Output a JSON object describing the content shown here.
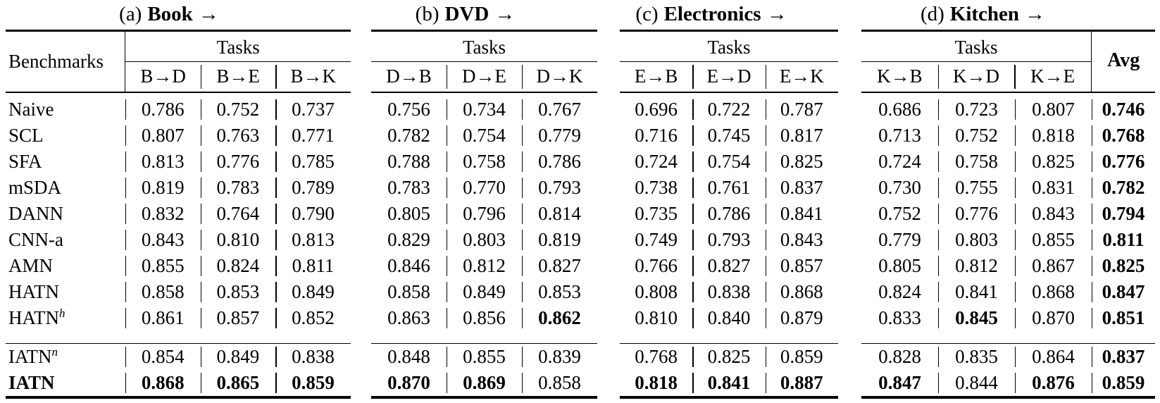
{
  "header": {
    "benchmarks_label": "Benchmarks",
    "tasks_label": "Tasks",
    "avg_label": "Avg"
  },
  "sections": [
    {
      "caption": "(a)",
      "title": "Book",
      "arrow": "→",
      "columns": [
        "B→D",
        "B→E",
        "B→K"
      ]
    },
    {
      "caption": "(b)",
      "title": "DVD",
      "arrow": "→",
      "columns": [
        "D→B",
        "D→E",
        "D→K"
      ]
    },
    {
      "caption": "(c)",
      "title": "Electronics",
      "arrow": "→",
      "columns": [
        "E→B",
        "E→D",
        "E→K"
      ]
    },
    {
      "caption": "(d)",
      "title": "Kitchen",
      "arrow": "→",
      "columns": [
        "K→B",
        "K→D",
        "K→E"
      ]
    }
  ],
  "colors": {
    "text": "#000000",
    "background": "#ffffff",
    "rule": "#000000"
  },
  "table": {
    "rows": [
      {
        "group": 1,
        "name": "Naive",
        "sup": "",
        "name_bold": false,
        "book": [
          "0.786",
          "0.752",
          "0.737"
        ],
        "dvd": [
          "0.756",
          "0.734",
          "0.767"
        ],
        "electronics": [
          "0.696",
          "0.722",
          "0.787"
        ],
        "kitchen": [
          "0.686",
          "0.723",
          "0.807"
        ],
        "avg": "0.746",
        "bold_book": [
          false,
          false,
          false
        ],
        "bold_dvd": [
          false,
          false,
          false
        ],
        "bold_electronics": [
          false,
          false,
          false
        ],
        "bold_kitchen": [
          false,
          false,
          false
        ]
      },
      {
        "group": 1,
        "name": "SCL",
        "sup": "",
        "name_bold": false,
        "book": [
          "0.807",
          "0.763",
          "0.771"
        ],
        "dvd": [
          "0.782",
          "0.754",
          "0.779"
        ],
        "electronics": [
          "0.716",
          "0.745",
          "0.817"
        ],
        "kitchen": [
          "0.713",
          "0.752",
          "0.818"
        ],
        "avg": "0.768",
        "bold_book": [
          false,
          false,
          false
        ],
        "bold_dvd": [
          false,
          false,
          false
        ],
        "bold_electronics": [
          false,
          false,
          false
        ],
        "bold_kitchen": [
          false,
          false,
          false
        ]
      },
      {
        "group": 1,
        "name": "SFA",
        "sup": "",
        "name_bold": false,
        "book": [
          "0.813",
          "0.776",
          "0.785"
        ],
        "dvd": [
          "0.788",
          "0.758",
          "0.786"
        ],
        "electronics": [
          "0.724",
          "0.754",
          "0.825"
        ],
        "kitchen": [
          "0.724",
          "0.758",
          "0.825"
        ],
        "avg": "0.776",
        "bold_book": [
          false,
          false,
          false
        ],
        "bold_dvd": [
          false,
          false,
          false
        ],
        "bold_electronics": [
          false,
          false,
          false
        ],
        "bold_kitchen": [
          false,
          false,
          false
        ]
      },
      {
        "group": 1,
        "name": "mSDA",
        "sup": "",
        "name_bold": false,
        "book": [
          "0.819",
          "0.783",
          "0.789"
        ],
        "dvd": [
          "0.783",
          "0.770",
          "0.793"
        ],
        "electronics": [
          "0.738",
          "0.761",
          "0.837"
        ],
        "kitchen": [
          "0.730",
          "0.755",
          "0.831"
        ],
        "avg": "0.782",
        "bold_book": [
          false,
          false,
          false
        ],
        "bold_dvd": [
          false,
          false,
          false
        ],
        "bold_electronics": [
          false,
          false,
          false
        ],
        "bold_kitchen": [
          false,
          false,
          false
        ]
      },
      {
        "group": 1,
        "name": "DANN",
        "sup": "",
        "name_bold": false,
        "book": [
          "0.832",
          "0.764",
          "0.790"
        ],
        "dvd": [
          "0.805",
          "0.796",
          "0.814"
        ],
        "electronics": [
          "0.735",
          "0.786",
          "0.841"
        ],
        "kitchen": [
          "0.752",
          "0.776",
          "0.843"
        ],
        "avg": "0.794",
        "bold_book": [
          false,
          false,
          false
        ],
        "bold_dvd": [
          false,
          false,
          false
        ],
        "bold_electronics": [
          false,
          false,
          false
        ],
        "bold_kitchen": [
          false,
          false,
          false
        ]
      },
      {
        "group": 1,
        "name": "CNN-a",
        "sup": "",
        "name_bold": false,
        "book": [
          "0.843",
          "0.810",
          "0.813"
        ],
        "dvd": [
          "0.829",
          "0.803",
          "0.819"
        ],
        "electronics": [
          "0.749",
          "0.793",
          "0.843"
        ],
        "kitchen": [
          "0.779",
          "0.803",
          "0.855"
        ],
        "avg": "0.811",
        "bold_book": [
          false,
          false,
          false
        ],
        "bold_dvd": [
          false,
          false,
          false
        ],
        "bold_electronics": [
          false,
          false,
          false
        ],
        "bold_kitchen": [
          false,
          false,
          false
        ]
      },
      {
        "group": 1,
        "name": "AMN",
        "sup": "",
        "name_bold": false,
        "book": [
          "0.855",
          "0.824",
          "0.811"
        ],
        "dvd": [
          "0.846",
          "0.812",
          "0.827"
        ],
        "electronics": [
          "0.766",
          "0.827",
          "0.857"
        ],
        "kitchen": [
          "0.805",
          "0.812",
          "0.867"
        ],
        "avg": "0.825",
        "bold_book": [
          false,
          false,
          false
        ],
        "bold_dvd": [
          false,
          false,
          false
        ],
        "bold_electronics": [
          false,
          false,
          false
        ],
        "bold_kitchen": [
          false,
          false,
          false
        ]
      },
      {
        "group": 1,
        "name": "HATN",
        "sup": "",
        "name_bold": false,
        "book": [
          "0.858",
          "0.853",
          "0.849"
        ],
        "dvd": [
          "0.858",
          "0.849",
          "0.853"
        ],
        "electronics": [
          "0.808",
          "0.838",
          "0.868"
        ],
        "kitchen": [
          "0.824",
          "0.841",
          "0.868"
        ],
        "avg": "0.847",
        "bold_book": [
          false,
          false,
          false
        ],
        "bold_dvd": [
          false,
          false,
          false
        ],
        "bold_electronics": [
          false,
          false,
          false
        ],
        "bold_kitchen": [
          false,
          false,
          false
        ]
      },
      {
        "group": 1,
        "name": "HATN",
        "sup": "h",
        "name_bold": false,
        "book": [
          "0.861",
          "0.857",
          "0.852"
        ],
        "dvd": [
          "0.863",
          "0.856",
          "0.862"
        ],
        "electronics": [
          "0.810",
          "0.840",
          "0.879"
        ],
        "kitchen": [
          "0.833",
          "0.845",
          "0.870"
        ],
        "avg": "0.851",
        "bold_book": [
          false,
          false,
          false
        ],
        "bold_dvd": [
          false,
          false,
          true
        ],
        "bold_electronics": [
          false,
          false,
          false
        ],
        "bold_kitchen": [
          false,
          true,
          false
        ]
      },
      {
        "group": 2,
        "name": "IATN",
        "sup": "n",
        "name_bold": false,
        "book": [
          "0.854",
          "0.849",
          "0.838"
        ],
        "dvd": [
          "0.848",
          "0.855",
          "0.839"
        ],
        "electronics": [
          "0.768",
          "0.825",
          "0.859"
        ],
        "kitchen": [
          "0.828",
          "0.835",
          "0.864"
        ],
        "avg": "0.837",
        "bold_book": [
          false,
          false,
          false
        ],
        "bold_dvd": [
          false,
          false,
          false
        ],
        "bold_electronics": [
          false,
          false,
          false
        ],
        "bold_kitchen": [
          false,
          false,
          false
        ]
      },
      {
        "group": 2,
        "name": "IATN",
        "sup": "",
        "name_bold": true,
        "book": [
          "0.868",
          "0.865",
          "0.859"
        ],
        "dvd": [
          "0.870",
          "0.869",
          "0.858"
        ],
        "electronics": [
          "0.818",
          "0.841",
          "0.887"
        ],
        "kitchen": [
          "0.847",
          "0.844",
          "0.876"
        ],
        "avg": "0.859",
        "bold_book": [
          true,
          true,
          true
        ],
        "bold_dvd": [
          true,
          true,
          false
        ],
        "bold_electronics": [
          true,
          true,
          true
        ],
        "bold_kitchen": [
          true,
          false,
          true
        ]
      }
    ]
  }
}
